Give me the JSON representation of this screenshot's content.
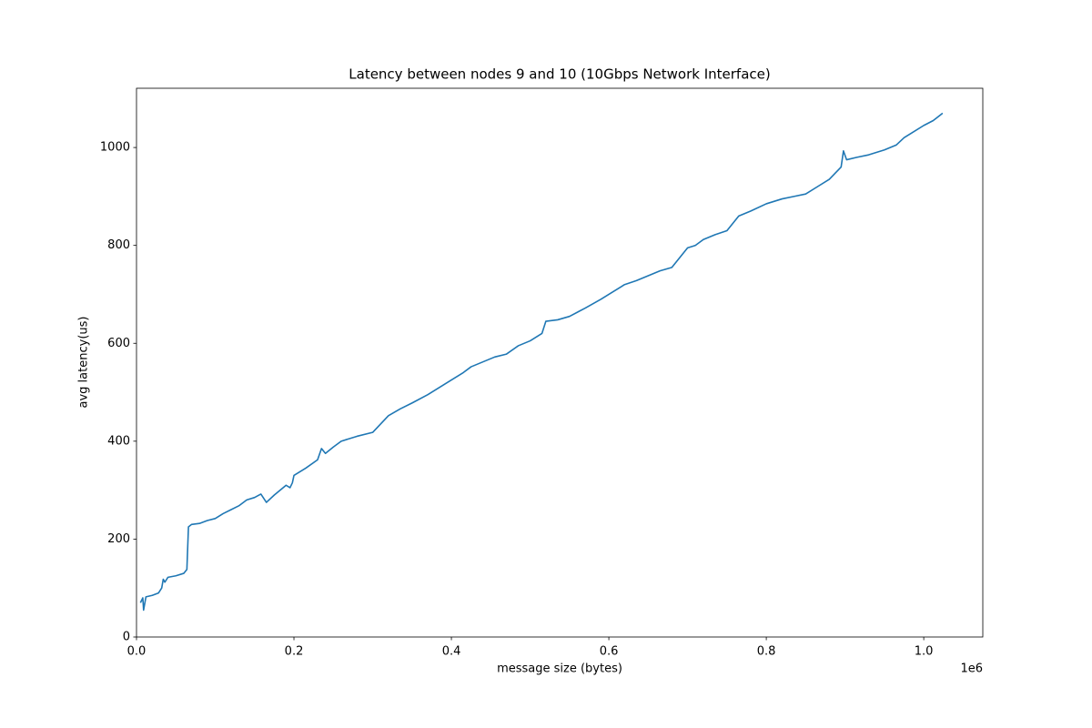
{
  "chart_data": {
    "type": "line",
    "title": "Latency between nodes 9 and 10 (10Gbps Network Interface)",
    "x_label": "message size (bytes)",
    "y_label": "avg latency(us)",
    "x_offset_label": "1e6",
    "x": [
      5000,
      8000,
      9000,
      12000,
      20000,
      28000,
      32000,
      34000,
      36000,
      40000,
      50000,
      60000,
      64000,
      66000,
      70000,
      80000,
      90000,
      100000,
      110000,
      120000,
      130000,
      140000,
      150000,
      158000,
      165000,
      175000,
      190000,
      195000,
      198000,
      200000,
      215000,
      230000,
      235000,
      240000,
      250000,
      260000,
      280000,
      300000,
      320000,
      335000,
      350000,
      370000,
      390000,
      400000,
      415000,
      425000,
      440000,
      455000,
      470000,
      485000,
      500000,
      515000,
      520000,
      535000,
      550000,
      570000,
      590000,
      600000,
      615000,
      620000,
      635000,
      650000,
      665000,
      680000,
      690000,
      700000,
      710000,
      720000,
      735000,
      750000,
      765000,
      780000,
      800000,
      820000,
      835000,
      850000,
      865000,
      880000,
      895000,
      898000,
      902000,
      915000,
      930000,
      950000,
      965000,
      975000,
      985000,
      1000000,
      1012000,
      1024000
    ],
    "series": [
      {
        "name": "latency",
        "color": "#1f77b4",
        "values": [
          70,
          80,
          55,
          82,
          85,
          90,
          100,
          118,
          112,
          122,
          125,
          130,
          138,
          225,
          230,
          232,
          238,
          242,
          252,
          260,
          268,
          280,
          285,
          292,
          275,
          290,
          310,
          305,
          315,
          330,
          345,
          362,
          385,
          375,
          388,
          400,
          410,
          418,
          452,
          466,
          478,
          495,
          515,
          525,
          540,
          552,
          562,
          572,
          578,
          595,
          605,
          620,
          645,
          648,
          655,
          672,
          690,
          700,
          715,
          720,
          728,
          738,
          748,
          755,
          775,
          795,
          800,
          812,
          822,
          830,
          860,
          870,
          885,
          895,
          900,
          905,
          920,
          935,
          960,
          993,
          975,
          980,
          985,
          995,
          1005,
          1020,
          1030,
          1045,
          1055,
          1070
        ]
      }
    ],
    "xlim": [
      0,
      1075000
    ],
    "ylim": [
      0,
      1121
    ],
    "xticks": [
      {
        "value": 0,
        "label": "0.0"
      },
      {
        "value": 200000,
        "label": "0.2"
      },
      {
        "value": 400000,
        "label": "0.4"
      },
      {
        "value": 600000,
        "label": "0.6"
      },
      {
        "value": 800000,
        "label": "0.8"
      },
      {
        "value": 1000000,
        "label": "1.0"
      }
    ],
    "yticks": [
      0,
      200,
      400,
      600,
      800,
      1000
    ],
    "grid": false
  }
}
